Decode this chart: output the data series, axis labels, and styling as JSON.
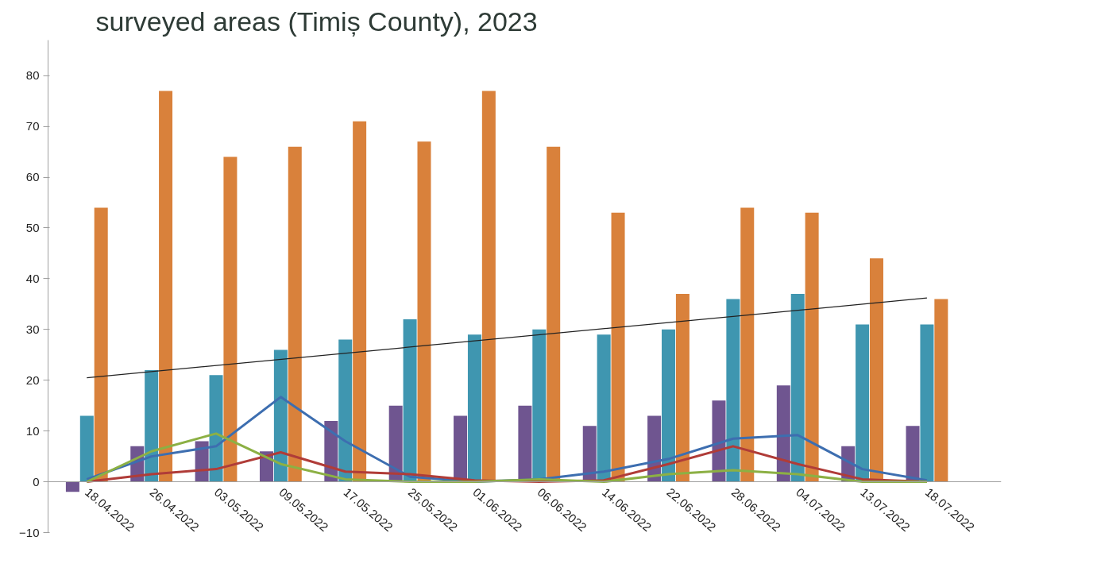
{
  "chart_data": {
    "type": "bar",
    "title": "surveyed areas (Timiș County), 2023",
    "categories": [
      "18.04.2022",
      "26.04.2022",
      "03.05.2022",
      "09.05.2022",
      "17.05.2022",
      "25.05.2022",
      "01.06.2022",
      "06.06.2022",
      "14.06.2022",
      "22.06.2022",
      "28.06.2022",
      "04.07.2022",
      "13.07.2022",
      "18.07.2022"
    ],
    "series": [
      {
        "color": "#6f5590",
        "values": [
          -2,
          7,
          8,
          6,
          12,
          15,
          13,
          15,
          11,
          13,
          16,
          19,
          7,
          11
        ]
      },
      {
        "color": "#3f96b0",
        "values": [
          13,
          22,
          21,
          26,
          28,
          32,
          29,
          30,
          29,
          30,
          36,
          37,
          31,
          31
        ]
      },
      {
        "color": "#d9813b",
        "values": [
          54,
          77,
          64,
          66,
          71,
          67,
          77,
          66,
          53,
          37,
          54,
          53,
          44,
          36
        ]
      },
      {
        "type": "line",
        "color": "#3d6eb0",
        "values": [
          0.5,
          5,
          7,
          16.7,
          8,
          1,
          0,
          0.5,
          2,
          4.5,
          8.5,
          9.2,
          2.5,
          0.3
        ]
      },
      {
        "type": "line",
        "color": "#b03c38",
        "values": [
          0,
          1.5,
          2.5,
          5.8,
          2,
          1.5,
          0.3,
          0,
          0.3,
          3.5,
          7,
          3.5,
          0.5,
          0
        ]
      },
      {
        "type": "line",
        "color": "#8cb044",
        "values": [
          0,
          6,
          9.5,
          3.5,
          0.5,
          0,
          0,
          0.5,
          0,
          1.5,
          2.3,
          1.5,
          0,
          0
        ]
      },
      {
        "type": "line",
        "color": "#222222",
        "x": [
          "18.04.2022",
          "18.07.2022"
        ],
        "values": [
          20.5,
          36.2
        ]
      }
    ],
    "ylim": [
      -10,
      87
    ],
    "yticks": [
      -10,
      0,
      10,
      20,
      30,
      40,
      50,
      60,
      70,
      80
    ],
    "grid": false
  }
}
